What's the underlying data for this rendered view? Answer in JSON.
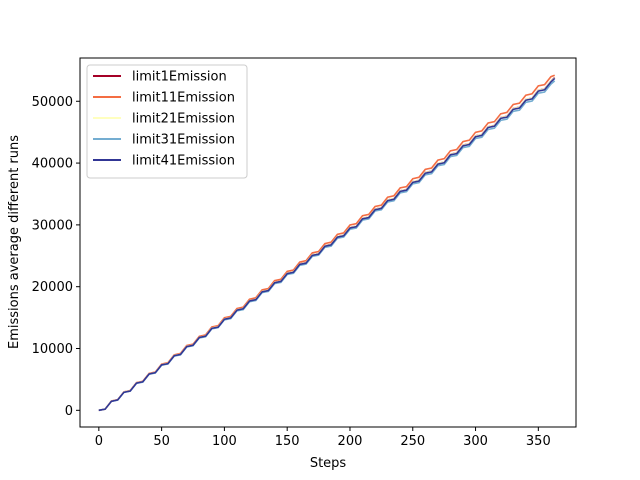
{
  "chart_data": {
    "type": "line",
    "title": "",
    "xlabel": "Steps",
    "ylabel": "Emissions average different runs",
    "xlim": [
      -15,
      380
    ],
    "ylim": [
      -2700,
      57000
    ],
    "xticks": [
      0,
      50,
      100,
      150,
      200,
      250,
      300,
      350
    ],
    "yticks": [
      0,
      10000,
      20000,
      30000,
      40000,
      50000
    ],
    "grid": false,
    "legend_position": "upper-left",
    "x_points": [
      0,
      5,
      10,
      15,
      20,
      25,
      30,
      35,
      40,
      45,
      50,
      55,
      60,
      65,
      70,
      75,
      80,
      85,
      90,
      95,
      100,
      105,
      110,
      115,
      120,
      125,
      130,
      135,
      140,
      145,
      150,
      155,
      160,
      165,
      170,
      175,
      180,
      185,
      190,
      195,
      200,
      205,
      210,
      215,
      220,
      225,
      230,
      235,
      240,
      245,
      250,
      255,
      260,
      265,
      270,
      275,
      280,
      285,
      290,
      295,
      300,
      305,
      310,
      315,
      320,
      325,
      330,
      335,
      340,
      345,
      350,
      355,
      360,
      363
    ],
    "series": [
      {
        "name": "limit1Emission",
        "color": "#a50026",
        "values": [
          0,
          190,
          1480,
          1700,
          2950,
          3160,
          4430,
          4640,
          5910,
          6120,
          7390,
          7600,
          8870,
          9080,
          10350,
          10560,
          11830,
          12040,
          13310,
          13520,
          14790,
          15000,
          16270,
          16480,
          17750,
          17960,
          19230,
          19440,
          20710,
          20920,
          22190,
          22400,
          23670,
          23880,
          25150,
          25360,
          26630,
          26840,
          28110,
          28320,
          29590,
          29800,
          31070,
          31280,
          32550,
          32760,
          34030,
          34240,
          35510,
          35720,
          36990,
          37200,
          38470,
          38680,
          39950,
          40160,
          41430,
          41640,
          42910,
          43120,
          44390,
          44600,
          45870,
          46080,
          47350,
          47560,
          48830,
          49040,
          50310,
          50520,
          51790,
          52000,
          53270,
          53850
        ]
      },
      {
        "name": "limit11Emission",
        "color": "#f46d43",
        "values": [
          0,
          195,
          1500,
          1720,
          2990,
          3200,
          4480,
          4700,
          5980,
          6200,
          7480,
          7700,
          8980,
          9200,
          10480,
          10700,
          11980,
          12200,
          13480,
          13700,
          14980,
          15200,
          16480,
          16700,
          17980,
          18200,
          19480,
          19700,
          20980,
          21200,
          22480,
          22700,
          23980,
          24200,
          25480,
          25700,
          26980,
          27200,
          28480,
          28700,
          29980,
          30200,
          31480,
          31700,
          32980,
          33200,
          34480,
          34700,
          35980,
          36200,
          37480,
          37700,
          38980,
          39200,
          40480,
          40700,
          41980,
          42200,
          43480,
          43700,
          44980,
          45200,
          46480,
          46700,
          47980,
          48200,
          49480,
          49700,
          50980,
          51200,
          52480,
          52700,
          53980,
          54200
        ]
      },
      {
        "name": "limit21Emission",
        "color": "#ffffbf",
        "values": [
          0,
          188,
          1470,
          1690,
          2940,
          3150,
          4420,
          4630,
          5900,
          6110,
          7380,
          7590,
          8860,
          9070,
          10340,
          10550,
          11820,
          12030,
          13300,
          13510,
          14780,
          14990,
          16260,
          16470,
          17740,
          17950,
          19220,
          19430,
          20700,
          20910,
          22180,
          22390,
          23660,
          23870,
          25140,
          25350,
          26620,
          26830,
          28100,
          28310,
          29580,
          29790,
          31060,
          31270,
          32540,
          32750,
          34020,
          34230,
          35500,
          35710,
          36980,
          37190,
          38460,
          38670,
          39940,
          40150,
          41420,
          41630,
          42900,
          43110,
          44380,
          44590,
          45860,
          46070,
          47340,
          47550,
          48820,
          49030,
          50300,
          50510,
          51780,
          51990,
          53260,
          53800
        ]
      },
      {
        "name": "limit31Emission",
        "color": "#74add1",
        "values": [
          0,
          180,
          1450,
          1660,
          2900,
          3100,
          4370,
          4570,
          5840,
          6040,
          7300,
          7500,
          8770,
          8970,
          10240,
          10440,
          11700,
          11900,
          13170,
          13370,
          14640,
          14840,
          16100,
          16300,
          17570,
          17770,
          19040,
          19240,
          20500,
          20700,
          21970,
          22170,
          23440,
          23640,
          24900,
          25100,
          26370,
          26570,
          27840,
          28040,
          29300,
          29500,
          30770,
          30970,
          32240,
          32440,
          33700,
          33900,
          35170,
          35370,
          36640,
          36840,
          38100,
          38300,
          39570,
          39770,
          41040,
          41240,
          42500,
          42700,
          43970,
          44170,
          45440,
          45640,
          46900,
          47100,
          48370,
          48570,
          49840,
          50040,
          51300,
          51500,
          52770,
          53300
        ]
      },
      {
        "name": "limit41Emission",
        "color": "#313695",
        "values": [
          0,
          185,
          1460,
          1680,
          2920,
          3130,
          4400,
          4610,
          5880,
          6090,
          7350,
          7560,
          8830,
          9040,
          10310,
          10520,
          11780,
          11990,
          13260,
          13470,
          14740,
          14950,
          16210,
          16420,
          17690,
          17900,
          19170,
          19380,
          20640,
          20850,
          22120,
          22330,
          23600,
          23810,
          25070,
          25280,
          26550,
          26760,
          28030,
          28240,
          29500,
          29710,
          30980,
          31190,
          32460,
          32670,
          33930,
          34140,
          35410,
          35620,
          36890,
          37100,
          38360,
          38570,
          39840,
          40050,
          41320,
          41530,
          42790,
          43000,
          44270,
          44480,
          45750,
          45960,
          47220,
          47430,
          48700,
          48910,
          50180,
          50390,
          51650,
          51860,
          53130,
          53700
        ]
      }
    ]
  }
}
